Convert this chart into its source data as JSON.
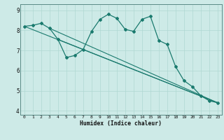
{
  "xlabel": "Humidex (Indice chaleur)",
  "xlim": [
    -0.5,
    23.5
  ],
  "ylim": [
    3.8,
    9.3
  ],
  "yticks": [
    4,
    5,
    6,
    7,
    8,
    9
  ],
  "xticks": [
    0,
    1,
    2,
    3,
    4,
    5,
    6,
    7,
    8,
    9,
    10,
    11,
    12,
    13,
    14,
    15,
    16,
    17,
    18,
    19,
    20,
    21,
    22,
    23
  ],
  "bg_color": "#cdeae7",
  "line_color": "#1a7a6e",
  "grid_color": "#afd8d2",
  "line1_x": [
    0,
    1,
    2,
    3,
    4,
    5,
    6,
    7,
    8,
    9,
    10,
    11,
    12,
    13,
    14,
    15,
    16,
    17,
    18,
    19,
    20,
    21,
    22,
    23
  ],
  "line1_y": [
    8.2,
    8.25,
    8.35,
    8.1,
    7.55,
    6.65,
    6.75,
    7.05,
    7.95,
    8.55,
    8.8,
    8.6,
    8.05,
    7.95,
    8.55,
    8.7,
    7.5,
    7.3,
    6.2,
    5.5,
    5.2,
    4.75,
    4.5,
    4.4
  ],
  "line2_x": [
    0,
    23
  ],
  "line2_y": [
    8.2,
    4.4
  ],
  "line3_x": [
    3,
    23
  ],
  "line3_y": [
    8.1,
    4.4
  ],
  "line4_x": [
    4,
    23
  ],
  "line4_y": [
    7.55,
    4.4
  ],
  "spine_color": "#5a8a85"
}
